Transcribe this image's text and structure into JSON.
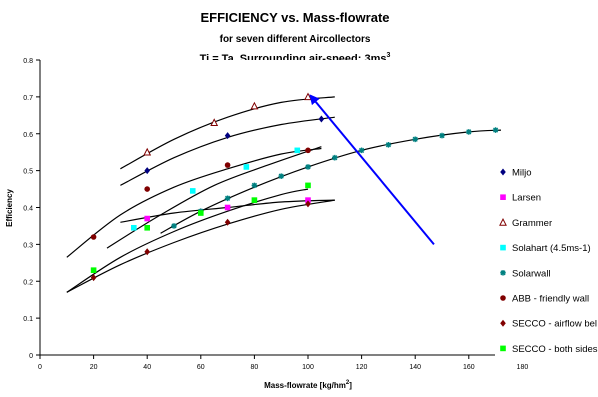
{
  "chart_data": {
    "type": "scatter",
    "title": "EFFICIENCY vs. Mass-flowrate",
    "subtitle": "for seven different Aircollectors",
    "subtitle2_main": "Ti = Ta, Surrounding air-speed: 3m",
    "subtitle2_super": "3",
    "subtitle2_sub": "s",
    "xlabel_main": "Mass-flowrate [kg/hm",
    "xlabel_super": "2",
    "xlabel_end": "]",
    "ylabel": "Efficiency",
    "xlim": [
      0,
      200
    ],
    "ylim": [
      0,
      0.8
    ],
    "x_ticks": [
      0,
      20,
      40,
      60,
      80,
      100,
      120,
      140,
      160,
      180
    ],
    "y_ticks": [
      0,
      0.1,
      0.2,
      0.3,
      0.4,
      0.5,
      0.6,
      0.7,
      0.8
    ],
    "grid": false,
    "legend_position": "right",
    "series": [
      {
        "name": "Miljo",
        "marker": "diamond",
        "color": "#000080",
        "x": [
          40,
          70,
          105
        ],
        "y": [
          0.5,
          0.595,
          0.64
        ],
        "fit": [
          [
            30,
            0.46
          ],
          [
            50,
            0.535
          ],
          [
            70,
            0.59
          ],
          [
            90,
            0.625
          ],
          [
            110,
            0.645
          ]
        ]
      },
      {
        "name": "Larsen",
        "marker": "square",
        "color": "#ff00ff",
        "x": [
          40,
          70,
          100
        ],
        "y": [
          0.37,
          0.4,
          0.42
        ],
        "fit": [
          [
            30,
            0.36
          ],
          [
            50,
            0.385
          ],
          [
            70,
            0.4
          ],
          [
            90,
            0.415
          ],
          [
            110,
            0.42
          ]
        ]
      },
      {
        "name": "Grammer",
        "marker": "triangle",
        "color": "#800000",
        "x": [
          40,
          65,
          80,
          100
        ],
        "y": [
          0.55,
          0.63,
          0.675,
          0.7
        ],
        "fit": [
          [
            30,
            0.505
          ],
          [
            50,
            0.585
          ],
          [
            70,
            0.645
          ],
          [
            90,
            0.685
          ],
          [
            110,
            0.7
          ]
        ]
      },
      {
        "name": "Solahart (4.5ms-1)",
        "marker": "square",
        "color": "#00ffff",
        "x": [
          35,
          57,
          77,
          96
        ],
        "y": [
          0.345,
          0.445,
          0.51,
          0.555
        ],
        "fit": [
          [
            25,
            0.29
          ],
          [
            45,
            0.38
          ],
          [
            65,
            0.46
          ],
          [
            85,
            0.515
          ],
          [
            105,
            0.565
          ]
        ]
      },
      {
        "name": "Solarwall",
        "marker": "star",
        "color": "#008080",
        "x": [
          50,
          60,
          70,
          80,
          90,
          100,
          110,
          120,
          130,
          140,
          150,
          160,
          170
        ],
        "y": [
          0.35,
          0.39,
          0.425,
          0.46,
          0.485,
          0.51,
          0.535,
          0.555,
          0.57,
          0.585,
          0.595,
          0.605,
          0.61
        ],
        "fit": [
          [
            45,
            0.33
          ],
          [
            60,
            0.39
          ],
          [
            80,
            0.455
          ],
          [
            100,
            0.51
          ],
          [
            120,
            0.555
          ],
          [
            140,
            0.585
          ],
          [
            160,
            0.605
          ],
          [
            172,
            0.61
          ]
        ]
      },
      {
        "name": "ABB - friendly wall",
        "marker": "circle",
        "color": "#800000",
        "x": [
          20,
          40,
          70,
          100
        ],
        "y": [
          0.32,
          0.45,
          0.515,
          0.555
        ],
        "fit": [
          [
            10,
            0.265
          ],
          [
            30,
            0.38
          ],
          [
            50,
            0.455
          ],
          [
            70,
            0.505
          ],
          [
            90,
            0.545
          ],
          [
            105,
            0.56
          ]
        ]
      },
      {
        "name": "SECCO - airflow bel",
        "marker": "diamond",
        "color": "#800000",
        "x": [
          20,
          40,
          70,
          100
        ],
        "y": [
          0.21,
          0.28,
          0.36,
          0.41
        ],
        "fit": [
          [
            10,
            0.17
          ],
          [
            30,
            0.245
          ],
          [
            50,
            0.305
          ],
          [
            70,
            0.355
          ],
          [
            90,
            0.395
          ],
          [
            110,
            0.42
          ]
        ]
      },
      {
        "name": "SECCO - both sides",
        "marker": "square",
        "color": "#00ff00",
        "x": [
          20,
          40,
          60,
          80,
          100
        ],
        "y": [
          0.23,
          0.345,
          0.385,
          0.42,
          0.46
        ],
        "fit": [
          [
            10,
            0.17
          ],
          [
            30,
            0.265
          ],
          [
            50,
            0.335
          ],
          [
            70,
            0.39
          ],
          [
            90,
            0.435
          ],
          [
            100,
            0.45
          ]
        ]
      }
    ],
    "annotation_arrow": {
      "color": "#0000ff",
      "from": [
        147,
        0.3
      ],
      "to": [
        101,
        0.703
      ]
    }
  }
}
